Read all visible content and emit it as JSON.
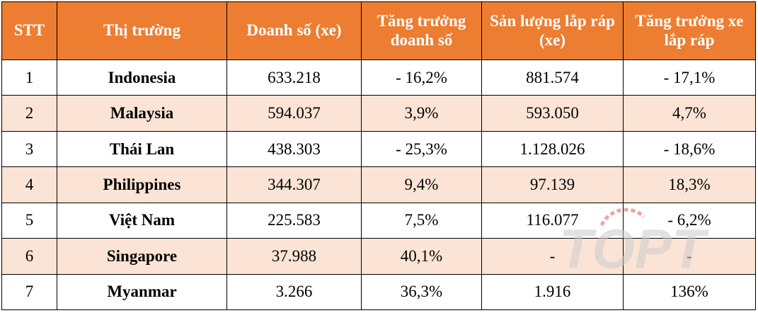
{
  "table": {
    "headers": [
      "STT",
      "Thị trường",
      "Doanh số (xe)",
      "Tăng trưởng doanh số",
      "Sản lượng lắp ráp (xe)",
      "Tăng trưởng xe lắp ráp"
    ],
    "rows": [
      [
        "1",
        "Indonesia",
        "633.218",
        "- 16,2%",
        "881.574",
        "- 17,1%"
      ],
      [
        "2",
        "Malaysia",
        "594.037",
        "3,9%",
        "593.050",
        "4,7%"
      ],
      [
        "3",
        "Thái Lan",
        "438.303",
        "- 25,3%",
        "1.128.026",
        "- 18,6%"
      ],
      [
        "4",
        "Philippines",
        "344.307",
        "9,4%",
        "97.139",
        "18,3%"
      ],
      [
        "5",
        "Việt Nam",
        "225.583",
        "7,5%",
        "116.077",
        "- 6,2%"
      ],
      [
        "6",
        "Singapore",
        "37.988",
        "40,1%",
        "-",
        "-"
      ],
      [
        "7",
        "Myanmar",
        "3.266",
        "36,3%",
        "1.916",
        "136%"
      ]
    ]
  },
  "watermark": {
    "text": "TOPT",
    "color": "#cccccc",
    "accent": "#e05a5a"
  },
  "colors": {
    "header_bg": "#ed7d31",
    "alt_row_bg": "#fbe4d5"
  }
}
